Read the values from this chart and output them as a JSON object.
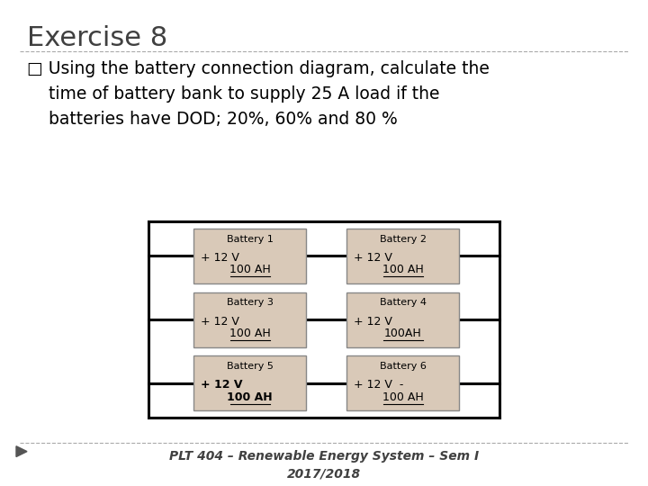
{
  "title": "Exercise 8",
  "bullet_text": "□ Using the battery connection diagram, calculate the\n    time of battery bank to supply 25 A load if the\n    batteries have DOD; 20%, 60% and 80 %",
  "footer": "PLT 404 – Renewable Energy System – Sem I\n2017/2018",
  "bg_color": "#ffffff",
  "title_color": "#404040",
  "text_color": "#000000",
  "footer_color": "#404040",
  "batteries": [
    {
      "label": "Battery 1",
      "line2": "+ 12 V",
      "line3": "100 AH",
      "bold": false
    },
    {
      "label": "Battery 2",
      "line2": "+ 12 V",
      "line3": "100 AH",
      "bold": false
    },
    {
      "label": "Battery 3",
      "line2": "+ 12 V",
      "line3": "100 AH",
      "bold": false
    },
    {
      "label": "Battery 4",
      "line2": "+ 12 V",
      "line3": "100AH",
      "bold": false
    },
    {
      "label": "Battery 5",
      "line2": "+ 12 V",
      "line3": "100 AH",
      "bold": true
    },
    {
      "label": "Battery 6",
      "line2": "+ 12 V  -",
      "line3": "100 AH",
      "bold": false
    }
  ],
  "box_facecolor": "#d9c9b8",
  "box_edgecolor": "#888888",
  "wire_color": "#000000"
}
